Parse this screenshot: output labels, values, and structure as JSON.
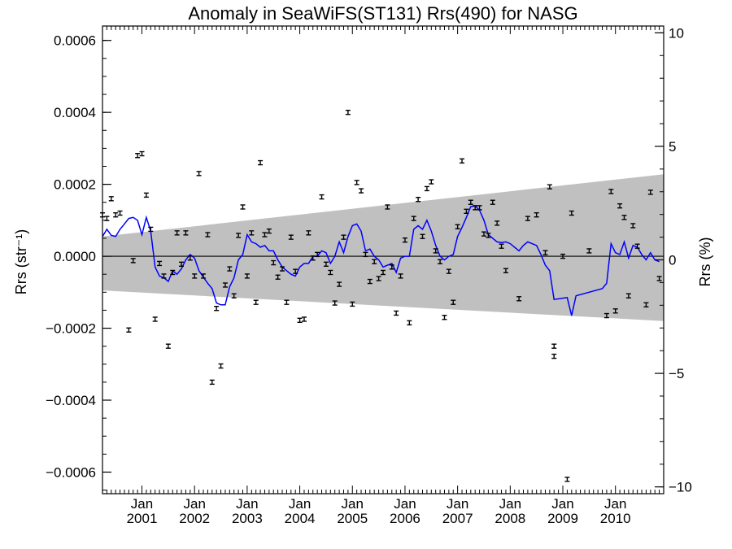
{
  "chart_data": {
    "type": "scatter",
    "title": "Anomaly in SeaWiFS(ST131) Rrs(490) for NASG",
    "ylabel_left": "Rrs (str⁻¹)",
    "ylabel_right": "Rrs (%)",
    "xlim": [
      "2000-04",
      "2010-12"
    ],
    "ylim_left": [
      -0.00066,
      0.00064
    ],
    "ylim_right": [
      -10.3,
      10.3
    ],
    "grid": false,
    "x_major_ticks": [
      {
        "date": "2001-01",
        "label": "Jan\n2001"
      },
      {
        "date": "2002-01",
        "label": "Jan\n2002"
      },
      {
        "date": "2003-01",
        "label": "Jan\n2003"
      },
      {
        "date": "2004-01",
        "label": "Jan\n2004"
      },
      {
        "date": "2005-01",
        "label": "Jan\n2005"
      },
      {
        "date": "2006-01",
        "label": "Jan\n2006"
      },
      {
        "date": "2007-01",
        "label": "Jan\n2007"
      },
      {
        "date": "2008-01",
        "label": "Jan\n2008"
      },
      {
        "date": "2009-01",
        "label": "Jan\n2009"
      },
      {
        "date": "2010-01",
        "label": "Jan\n2010"
      }
    ],
    "y_left_ticks": [
      {
        "value": 0.0006,
        "label": "0.0006"
      },
      {
        "value": 0.0004,
        "label": "0.0004"
      },
      {
        "value": 0.0002,
        "label": "0.0002"
      },
      {
        "value": 0.0,
        "label": "0.0000"
      },
      {
        "value": -0.0002,
        "label": "−0.0002"
      },
      {
        "value": -0.0004,
        "label": "−0.0004"
      },
      {
        "value": -0.0006,
        "label": "−0.0006"
      }
    ],
    "y_right_ticks": [
      {
        "value": 10,
        "label": "10"
      },
      {
        "value": 5,
        "label": "5"
      },
      {
        "value": 0,
        "label": "0"
      },
      {
        "value": -5,
        "label": "−5"
      },
      {
        "value": -10,
        "label": "−10"
      }
    ],
    "band": {
      "color": "#c0c0c0",
      "start": {
        "date": "2000-04",
        "upper": 5.5e-05,
        "lower": -9.5e-05
      },
      "end": {
        "date": "2010-12",
        "upper": 0.000228,
        "lower": -0.00018
      }
    },
    "zero_line": {
      "value": 0.0,
      "color": "#000000"
    },
    "series": [
      {
        "color": "#000000",
        "marker": "errorbar",
        "points": [
          [
            "2000-04",
            0.000115
          ],
          [
            "2000-05",
            0.000105
          ],
          [
            "2000-06",
            0.00016
          ],
          [
            "2000-07",
            0.000115
          ],
          [
            "2000-08",
            0.00012
          ],
          [
            "2000-10",
            -0.000205
          ],
          [
            "2000-11",
            -1.2e-05
          ],
          [
            "2000-12",
            0.00028
          ],
          [
            "2001-01",
            0.000285
          ],
          [
            "2001-02",
            0.00017
          ],
          [
            "2001-03",
            7.5e-05
          ],
          [
            "2001-04",
            -0.000175
          ],
          [
            "2001-05",
            -2e-05
          ],
          [
            "2001-06",
            -5.5e-05
          ],
          [
            "2001-07",
            -0.00025
          ],
          [
            "2001-08",
            -4.5e-05
          ],
          [
            "2001-09",
            6.5e-05
          ],
          [
            "2001-10",
            -2.2e-05
          ],
          [
            "2001-11",
            6.5e-05
          ],
          [
            "2001-12",
            -5e-06
          ],
          [
            "2002-01",
            -5.5e-05
          ],
          [
            "2002-02",
            0.00023
          ],
          [
            "2002-03",
            -5.5e-05
          ],
          [
            "2002-04",
            6e-05
          ],
          [
            "2002-05",
            -0.00035
          ],
          [
            "2002-06",
            -0.000145
          ],
          [
            "2002-07",
            -0.000305
          ],
          [
            "2002-08",
            -8e-05
          ],
          [
            "2002-09",
            -3.5e-05
          ],
          [
            "2002-10",
            -0.00011
          ],
          [
            "2002-11",
            5.8e-05
          ],
          [
            "2002-12",
            0.000137
          ],
          [
            "2003-01",
            -5.5e-05
          ],
          [
            "2003-02",
            6.5e-05
          ],
          [
            "2003-03",
            -0.000128
          ],
          [
            "2003-04",
            0.00026
          ],
          [
            "2003-05",
            6e-05
          ],
          [
            "2003-06",
            7e-05
          ],
          [
            "2003-07",
            -1.8e-05
          ],
          [
            "2003-08",
            -5.8e-05
          ],
          [
            "2003-09",
            -3.5e-05
          ],
          [
            "2003-10",
            -0.000128
          ],
          [
            "2003-11",
            5.3e-05
          ],
          [
            "2003-12",
            -4.2e-05
          ],
          [
            "2004-01",
            -0.000178
          ],
          [
            "2004-02",
            -0.000175
          ],
          [
            "2004-03",
            6.5e-05
          ],
          [
            "2004-04",
            -5e-06
          ],
          [
            "2004-05",
            5e-06
          ],
          [
            "2004-06",
            0.000165
          ],
          [
            "2004-07",
            -2.2e-05
          ],
          [
            "2004-08",
            -4.5e-05
          ],
          [
            "2004-09",
            -0.00013
          ],
          [
            "2004-10",
            -7.8e-05
          ],
          [
            "2004-11",
            5.3e-05
          ],
          [
            "2004-12",
            0.0004
          ],
          [
            "2005-01",
            -0.000133
          ],
          [
            "2005-02",
            0.000205
          ],
          [
            "2005-03",
            0.000182
          ],
          [
            "2005-04",
            5e-06
          ],
          [
            "2005-05",
            -7e-05
          ],
          [
            "2005-06",
            -1.5e-05
          ],
          [
            "2005-07",
            -6.2e-05
          ],
          [
            "2005-08",
            -4.5e-05
          ],
          [
            "2005-09",
            0.000137
          ],
          [
            "2005-10",
            -3e-05
          ],
          [
            "2005-11",
            -0.000158
          ],
          [
            "2005-12",
            -5.5e-05
          ],
          [
            "2006-01",
            4.5e-05
          ],
          [
            "2006-02",
            -0.000185
          ],
          [
            "2006-03",
            0.000105
          ],
          [
            "2006-04",
            0.000158
          ],
          [
            "2006-05",
            5.5e-05
          ],
          [
            "2006-06",
            0.000188
          ],
          [
            "2006-07",
            0.000207
          ],
          [
            "2006-08",
            1.5e-05
          ],
          [
            "2006-09",
            -1.5e-05
          ],
          [
            "2006-10",
            -0.00017
          ],
          [
            "2006-11",
            -4.2e-05
          ],
          [
            "2006-12",
            -0.000128
          ],
          [
            "2007-01",
            8.2e-05
          ],
          [
            "2007-02",
            0.000265
          ],
          [
            "2007-03",
            0.000125
          ],
          [
            "2007-04",
            0.00015
          ],
          [
            "2007-05",
            0.000135
          ],
          [
            "2007-06",
            0.000135
          ],
          [
            "2007-07",
            6.2e-05
          ],
          [
            "2007-08",
            5.8e-05
          ],
          [
            "2007-09",
            0.00015
          ],
          [
            "2007-10",
            9.2e-05
          ],
          [
            "2007-11",
            2.8e-05
          ],
          [
            "2007-12",
            -4e-05
          ],
          [
            "2008-03",
            -0.000118
          ],
          [
            "2008-05",
            0.000105
          ],
          [
            "2008-07",
            0.000115
          ],
          [
            "2008-09",
            1e-05
          ],
          [
            "2008-10",
            0.000193
          ],
          [
            "2008-11",
            -0.00025
          ],
          [
            "2008-11",
            -0.000278
          ],
          [
            "2009-01",
            0.0
          ],
          [
            "2009-02",
            -0.00062
          ],
          [
            "2009-03",
            0.00012
          ],
          [
            "2009-07",
            1.5e-05
          ],
          [
            "2009-11",
            -0.000165
          ],
          [
            "2009-12",
            0.00018
          ],
          [
            "2010-01",
            -0.000152
          ],
          [
            "2010-02",
            0.00014
          ],
          [
            "2010-03",
            0.000108
          ],
          [
            "2010-04",
            -0.00011
          ],
          [
            "2010-05",
            8.5e-05
          ],
          [
            "2010-06",
            2.8e-05
          ],
          [
            "2010-08",
            -0.000135
          ],
          [
            "2010-09",
            0.000178
          ],
          [
            "2010-11",
            -6.2e-05
          ]
        ]
      },
      {
        "color": "#0000ff",
        "marker": "line",
        "points": [
          [
            "2000-04",
            5.5e-05
          ],
          [
            "2000-05",
            7.5e-05
          ],
          [
            "2000-06",
            5.8e-05
          ],
          [
            "2000-07",
            5.5e-05
          ],
          [
            "2000-08",
            7.5e-05
          ],
          [
            "2000-09",
            9e-05
          ],
          [
            "2000-10",
            0.000105
          ],
          [
            "2000-11",
            0.000108
          ],
          [
            "2000-12",
            0.0001
          ],
          [
            "2001-01",
            6e-05
          ],
          [
            "2001-02",
            0.000108
          ],
          [
            "2001-03",
            7e-05
          ],
          [
            "2001-04",
            -3e-05
          ],
          [
            "2001-05",
            -5.5e-05
          ],
          [
            "2001-06",
            -6e-05
          ],
          [
            "2001-07",
            -7e-05
          ],
          [
            "2001-08",
            -4e-05
          ],
          [
            "2001-09",
            -5e-05
          ],
          [
            "2001-10",
            -3.5e-05
          ],
          [
            "2001-11",
            -1e-05
          ],
          [
            "2001-12",
            5e-06
          ],
          [
            "2002-01",
            -5e-06
          ],
          [
            "2002-02",
            -4e-05
          ],
          [
            "2002-03",
            -5.8e-05
          ],
          [
            "2002-04",
            -7.5e-05
          ],
          [
            "2002-05",
            -9e-05
          ],
          [
            "2002-06",
            -0.00013
          ],
          [
            "2002-07",
            -0.000135
          ],
          [
            "2002-08",
            -0.000135
          ],
          [
            "2002-09",
            -8.5e-05
          ],
          [
            "2002-10",
            -6e-05
          ],
          [
            "2002-11",
            -1e-05
          ],
          [
            "2002-12",
            5e-06
          ],
          [
            "2003-01",
            6e-05
          ],
          [
            "2003-02",
            4e-05
          ],
          [
            "2003-03",
            3.5e-05
          ],
          [
            "2003-04",
            2.5e-05
          ],
          [
            "2003-05",
            3e-05
          ],
          [
            "2003-06",
            1.5e-05
          ],
          [
            "2003-07",
            1.5e-05
          ],
          [
            "2003-08",
            -1e-05
          ],
          [
            "2003-09",
            -3e-05
          ],
          [
            "2003-10",
            -4e-05
          ],
          [
            "2003-11",
            -5e-05
          ],
          [
            "2003-12",
            -5.5e-05
          ],
          [
            "2004-01",
            -3e-05
          ],
          [
            "2004-02",
            -2e-05
          ],
          [
            "2004-03",
            -2e-05
          ],
          [
            "2004-04",
            0.0
          ],
          [
            "2004-05",
            0.0
          ],
          [
            "2004-06",
            1.5e-05
          ],
          [
            "2004-07",
            1e-05
          ],
          [
            "2004-08",
            -2e-05
          ],
          [
            "2004-09",
            0.0
          ],
          [
            "2004-10",
            4e-05
          ],
          [
            "2004-11",
            1e-05
          ],
          [
            "2004-12",
            5.5e-05
          ],
          [
            "2005-01",
            8.5e-05
          ],
          [
            "2005-02",
            9e-05
          ],
          [
            "2005-03",
            7e-05
          ],
          [
            "2005-04",
            1.5e-05
          ],
          [
            "2005-05",
            2e-05
          ],
          [
            "2005-06",
            0.0
          ],
          [
            "2005-07",
            -1e-05
          ],
          [
            "2005-08",
            -3e-05
          ],
          [
            "2005-09",
            -2.5e-05
          ],
          [
            "2005-10",
            -2e-05
          ],
          [
            "2005-11",
            -4.5e-05
          ],
          [
            "2005-12",
            -5e-06
          ],
          [
            "2006-01",
            0.0
          ],
          [
            "2006-02",
            0.0
          ],
          [
            "2006-03",
            7.5e-05
          ],
          [
            "2006-04",
            8.5e-05
          ],
          [
            "2006-05",
            7.5e-05
          ],
          [
            "2006-06",
            0.0001
          ],
          [
            "2006-07",
            7e-05
          ],
          [
            "2006-08",
            3e-05
          ],
          [
            "2006-09",
            0.0
          ],
          [
            "2006-10",
            -1e-05
          ],
          [
            "2006-11",
            0.0
          ],
          [
            "2006-12",
            5e-06
          ],
          [
            "2007-01",
            5.5e-05
          ],
          [
            "2007-02",
            8e-05
          ],
          [
            "2007-03",
            0.000108
          ],
          [
            "2007-04",
            0.000138
          ],
          [
            "2007-05",
            0.00014
          ],
          [
            "2007-06",
            0.000128
          ],
          [
            "2007-07",
            0.0001
          ],
          [
            "2007-08",
            6e-05
          ],
          [
            "2007-09",
            5e-05
          ],
          [
            "2007-10",
            4e-05
          ],
          [
            "2007-11",
            3.8e-05
          ],
          [
            "2007-12",
            4e-05
          ],
          [
            "2008-01",
            3.5e-05
          ],
          [
            "2008-02",
            2.5e-05
          ],
          [
            "2008-03",
            1.5e-05
          ],
          [
            "2008-04",
            3e-05
          ],
          [
            "2008-05",
            4e-05
          ],
          [
            "2008-07",
            3e-05
          ],
          [
            "2008-08",
            5e-06
          ],
          [
            "2008-09",
            -2.5e-05
          ],
          [
            "2008-10",
            -4e-05
          ],
          [
            "2008-11",
            -0.00012
          ],
          [
            "2009-02",
            -0.000115
          ],
          [
            "2009-03",
            -0.000165
          ],
          [
            "2009-04",
            -0.00011
          ],
          [
            "2009-10",
            -9e-05
          ],
          [
            "2009-11",
            -7.5e-05
          ],
          [
            "2009-12",
            3.5e-05
          ],
          [
            "2010-01",
            1e-05
          ],
          [
            "2010-02",
            5e-06
          ],
          [
            "2010-03",
            4e-05
          ],
          [
            "2010-04",
            -5e-06
          ],
          [
            "2010-05",
            3e-05
          ],
          [
            "2010-06",
            2.5e-05
          ],
          [
            "2010-07",
            5e-06
          ],
          [
            "2010-08",
            -1e-05
          ],
          [
            "2010-09",
            1e-05
          ],
          [
            "2010-10",
            -1e-05
          ],
          [
            "2010-11",
            -1.5e-05
          ]
        ]
      }
    ]
  }
}
